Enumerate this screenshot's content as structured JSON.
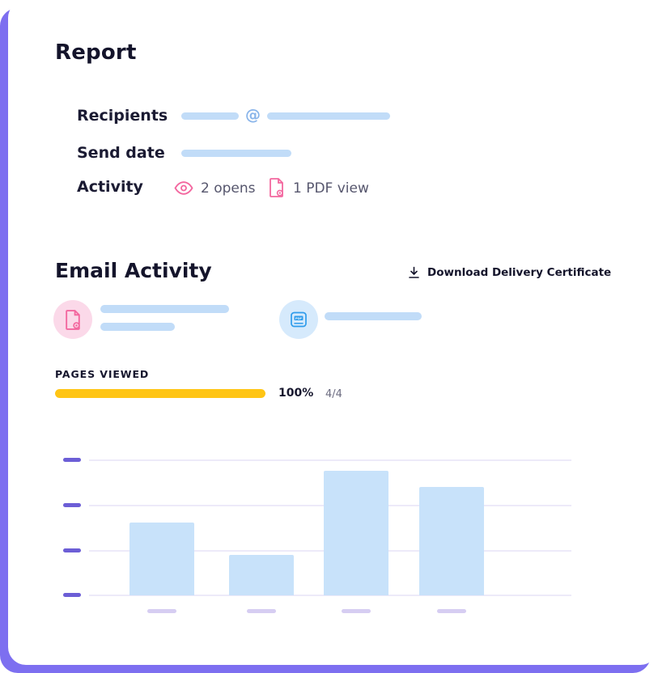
{
  "colors": {
    "background_accent": "#7d6ff0",
    "card": "#ffffff",
    "redact_bar_blue": "#c1dcf8",
    "pink": "#f3679f",
    "pink_light": "#fbd9e9",
    "blue_icon": "#2f9ceb",
    "blue_light": "#d6eafc",
    "progress_yellow": "#ffc515",
    "tick_purple": "#6c5ed6",
    "x_dash_lavender": "#d6cdf2",
    "gridline": "#edeaf9",
    "chart_bar_blue": "#c8e2fa",
    "text_dark": "#14142b",
    "text_gray": "#56566d"
  },
  "icons": {
    "eye": "eye-icon (outlined eye, pink)",
    "pdf_view": "pdf-view-icon (document with view badge, pink)",
    "download": "download-icon (arrow into tray, dark)",
    "pdf_attachment": "pdf-file-icon (document with badge, pink, in pink circle)",
    "pdf_badge": "pdf-badge-icon (card with PDF tag, blue, in blue circle)"
  },
  "report": {
    "title": "Report",
    "recipients_label": "Recipients",
    "recipients_at": "@",
    "send_date_label": "Send date",
    "activity_label": "Activity",
    "opens_text": "2 opens",
    "pdf_views_text": "1 PDF view"
  },
  "email_activity": {
    "title": "Email Activity",
    "download_certificate_label": "Download Delivery Certificate"
  },
  "pages_viewed": {
    "label": "PAGES VIEWED",
    "percent_text": "100%",
    "percent_value": 100,
    "fraction_text": "4/4"
  },
  "chart_data": {
    "type": "bar",
    "title": "PAGES VIEWED",
    "categories": [
      "",
      "",
      "",
      ""
    ],
    "values": [
      54,
      30,
      92,
      80
    ],
    "ylim": [
      0,
      100
    ],
    "gridlines": 4,
    "legend": false,
    "axis_labels_redacted": true
  }
}
